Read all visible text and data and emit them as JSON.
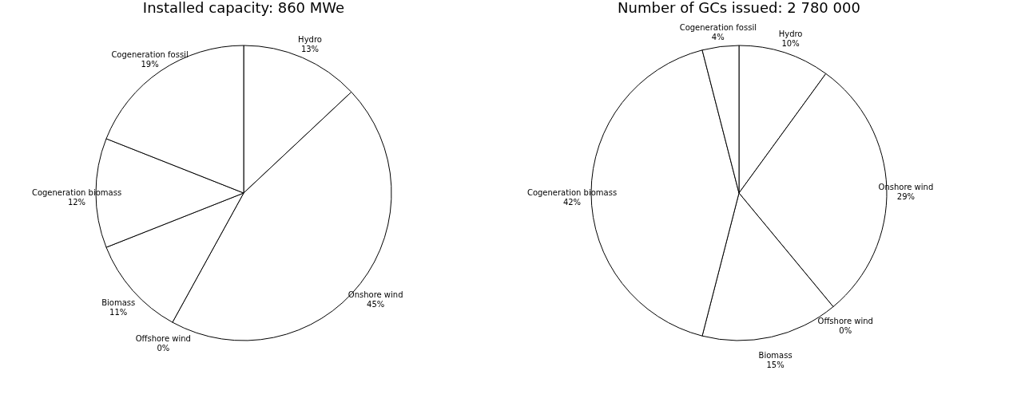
{
  "chart_data": [
    {
      "type": "pie",
      "title": "Installed capacity: 860 MWe",
      "categories": [
        "Hydro",
        "Onshore wind",
        "Offshore wind",
        "Biomass",
        "Cogeneration biomass",
        "Cogeneration fossil"
      ],
      "values": [
        13,
        45,
        0,
        11,
        12,
        19
      ],
      "value_labels": [
        "13%",
        "45%",
        "0%",
        "11%",
        "12%",
        "19%"
      ],
      "colors": [
        "#ffffff",
        "#ffffff",
        "#ffffff",
        "#ffffff",
        "#ffffff",
        "#ffffff"
      ],
      "legend": false
    },
    {
      "type": "pie",
      "title": "Number of GCs issued: 2 780 000",
      "categories": [
        "Hydro",
        "Onshore wind",
        "Offshore wind",
        "Biomass",
        "Cogeneration biomass",
        "Cogeneration fossil"
      ],
      "values": [
        10,
        29,
        0,
        15,
        42,
        4
      ],
      "value_labels": [
        "10%",
        "29%",
        "0%",
        "15%",
        "42%",
        "4%"
      ],
      "colors": [
        "#ffffff",
        "#ffffff",
        "#ffffff",
        "#ffffff",
        "#ffffff",
        "#ffffff"
      ],
      "legend": false
    }
  ]
}
